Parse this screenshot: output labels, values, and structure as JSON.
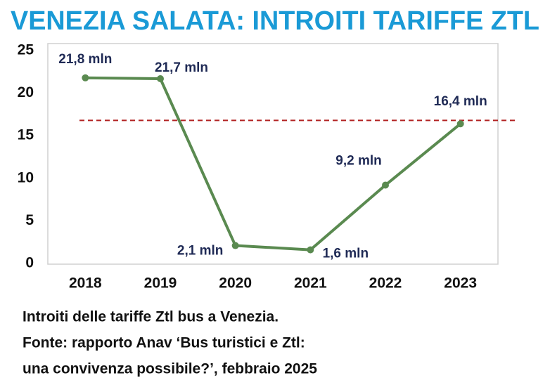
{
  "chart_data": {
    "type": "line",
    "title": "VENEZIA SALATA: INTROITI TARIFFE ZTL",
    "title_color": "#1a9ad6",
    "categories": [
      "2018",
      "2019",
      "2020",
      "2021",
      "2022",
      "2023"
    ],
    "values": [
      21.8,
      21.7,
      2.1,
      1.6,
      9.2,
      16.4
    ],
    "value_labels": [
      "21,8 mln",
      "21,7 mln",
      "2,1 mln",
      "1,6 mln",
      "9,2 mln",
      "16,4 mln"
    ],
    "color": "#5a8a50",
    "ylim": [
      0,
      25
    ],
    "yticks": [
      0,
      5,
      10,
      15,
      20,
      25
    ],
    "reference_line": {
      "value": 16.8,
      "color": "#b22222",
      "style": "dashed"
    },
    "notes": [
      "Introiti delle tariffe Ztl bus a Venezia.",
      "Fonte: rapporto Anav ‘Bus turistici e Ztl:",
      "una convivenza possibile?’, febbraio 2025"
    ]
  }
}
